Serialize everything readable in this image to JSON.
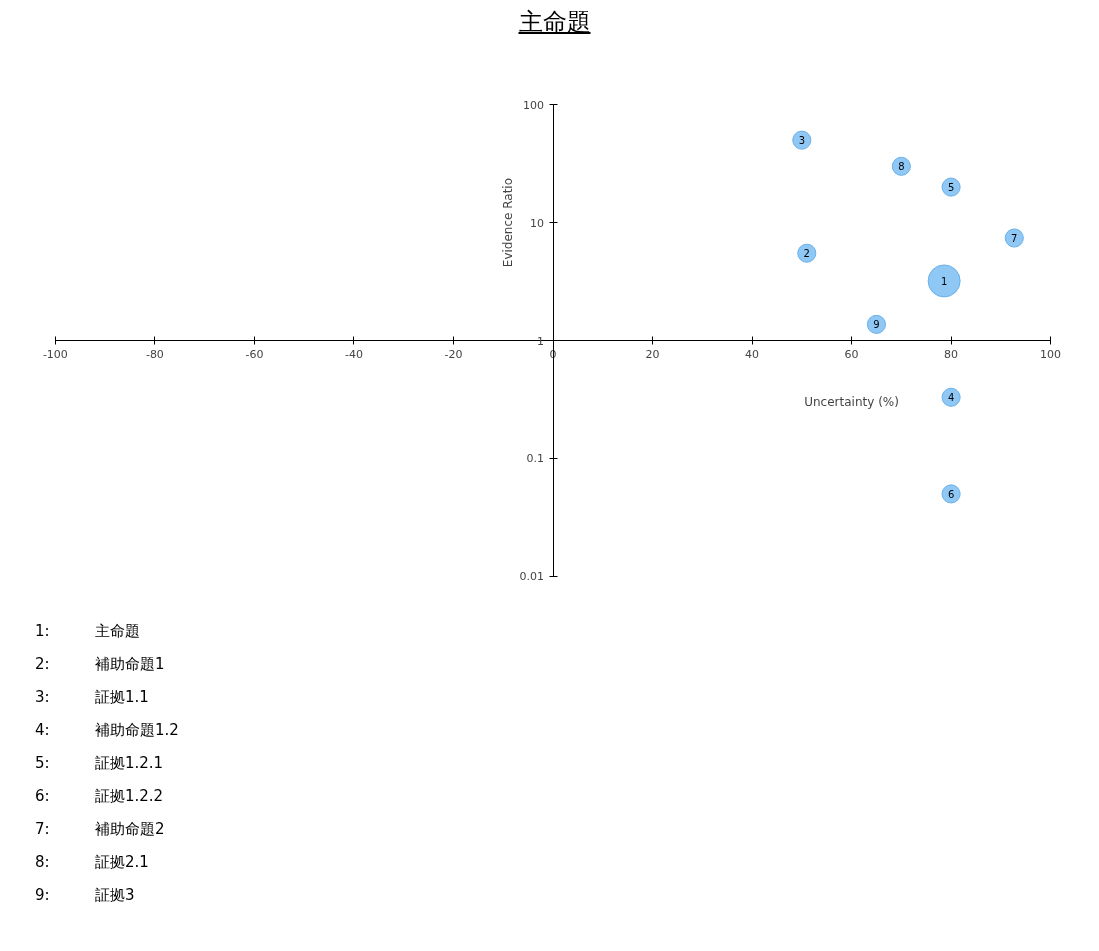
{
  "chart_data": {
    "type": "bubble",
    "title": "主命題",
    "xlabel": "Uncertainty (%)",
    "ylabel": "Evidence Ratio",
    "x": [
      78.6,
      51,
      50,
      80,
      80,
      80,
      92.7,
      70,
      65
    ],
    "series": [
      {
        "color": "#8fc8f5",
        "values": [
          3.2,
          5.5,
          50,
          0.33,
          20,
          0.05,
          7.4,
          30,
          1.37
        ],
        "sizes": [
          1,
          0.32,
          0.32,
          0.32,
          0.32,
          0.32,
          0.32,
          0.32,
          0.32
        ]
      }
    ],
    "xlim": [
      -100,
      100
    ],
    "xticks": [
      -100,
      -80,
      -60,
      -40,
      -20,
      0,
      20,
      40,
      60,
      80,
      100
    ],
    "ylim": [
      0.01,
      100
    ],
    "yticks": [
      0.01,
      0.1,
      1,
      10,
      100
    ],
    "log": "y",
    "marker": "circle",
    "annotations": [
      {
        "text": "1",
        "x": 78.6,
        "y": 3.2
      },
      {
        "text": "2",
        "x": 51,
        "y": 5.5
      },
      {
        "text": "3",
        "x": 50,
        "y": 50
      },
      {
        "text": "4",
        "x": 80,
        "y": 0.33
      },
      {
        "text": "5",
        "x": 80,
        "y": 20
      },
      {
        "text": "6",
        "x": 80,
        "y": 0.05
      },
      {
        "text": "7",
        "x": 92.7,
        "y": 7.4
      },
      {
        "text": "8",
        "x": 70,
        "y": 30
      },
      {
        "text": "9",
        "x": 65,
        "y": 1.37
      },
      "1:  主命題",
      "2:  補助命題1",
      "3:  証拠1.1",
      "4:  補助命題1.2",
      "5:  証拠1.2.1",
      "6:  証拠1.2.2",
      "7:  補助命題2",
      "8:  証拠2.1",
      "9:  証拠3"
    ]
  }
}
